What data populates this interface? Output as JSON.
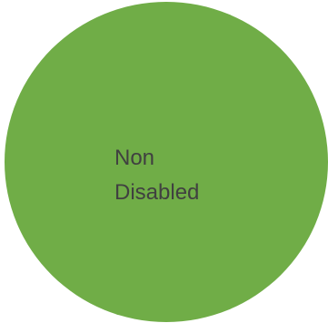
{
  "circle": {
    "fill_color": "#70ad47",
    "label_lines": [
      "Non",
      "Disabled"
    ],
    "label_color": "#404040"
  }
}
